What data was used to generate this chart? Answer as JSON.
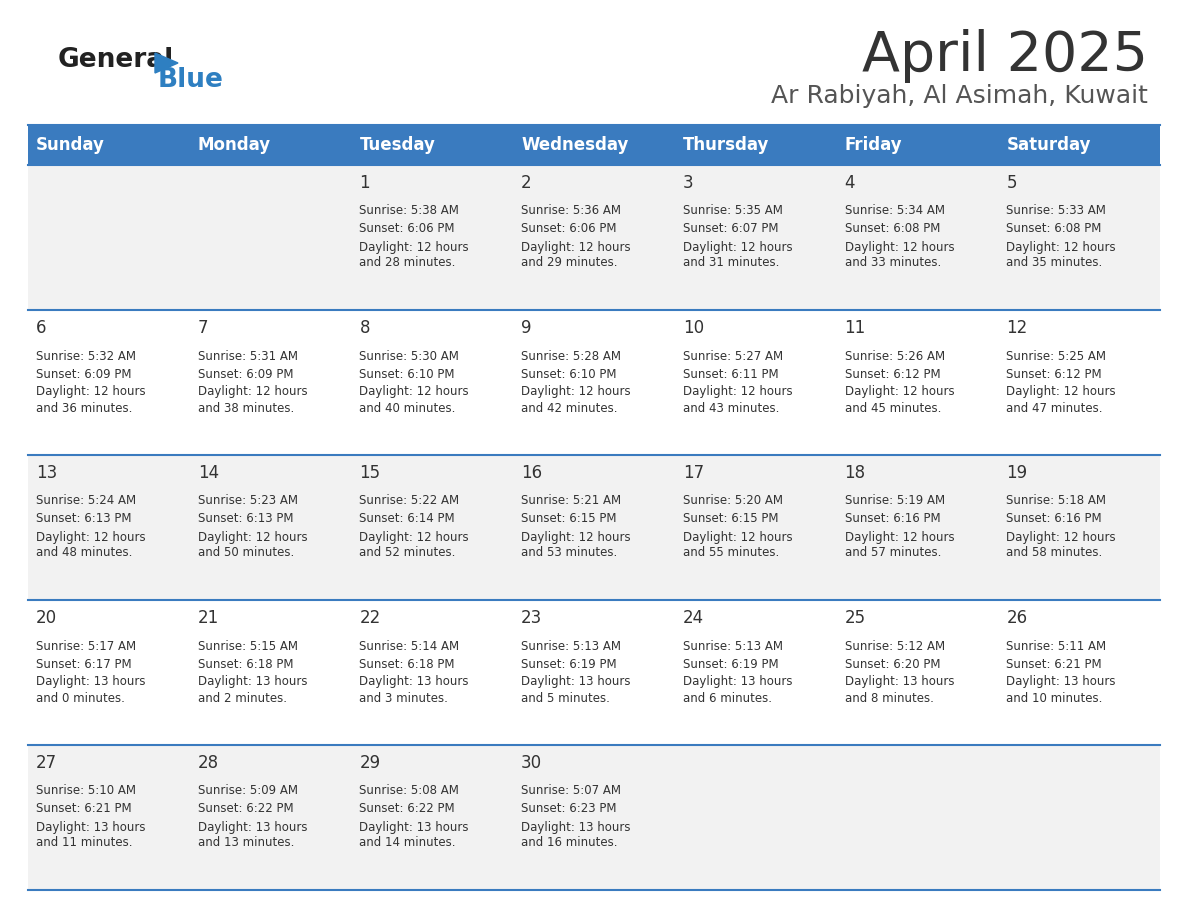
{
  "title": "April 2025",
  "subtitle": "Ar Rabiyah, Al Asimah, Kuwait",
  "header_bg_color": "#3a7bbf",
  "header_text_color": "#ffffff",
  "row_bg_even": "#f2f2f2",
  "row_bg_odd": "#ffffff",
  "day_names": [
    "Sunday",
    "Monday",
    "Tuesday",
    "Wednesday",
    "Thursday",
    "Friday",
    "Saturday"
  ],
  "title_color": "#333333",
  "subtitle_color": "#555555",
  "date_text_color": "#333333",
  "info_text_color": "#333333",
  "divider_color": "#3a7bbf",
  "weeks": [
    [
      {
        "day": "",
        "sunrise": "",
        "sunset": "",
        "daylight": ""
      },
      {
        "day": "",
        "sunrise": "",
        "sunset": "",
        "daylight": ""
      },
      {
        "day": "1",
        "sunrise": "5:38 AM",
        "sunset": "6:06 PM",
        "daylight": "12 hours and 28 minutes."
      },
      {
        "day": "2",
        "sunrise": "5:36 AM",
        "sunset": "6:06 PM",
        "daylight": "12 hours and 29 minutes."
      },
      {
        "day": "3",
        "sunrise": "5:35 AM",
        "sunset": "6:07 PM",
        "daylight": "12 hours and 31 minutes."
      },
      {
        "day": "4",
        "sunrise": "5:34 AM",
        "sunset": "6:08 PM",
        "daylight": "12 hours and 33 minutes."
      },
      {
        "day": "5",
        "sunrise": "5:33 AM",
        "sunset": "6:08 PM",
        "daylight": "12 hours and 35 minutes."
      }
    ],
    [
      {
        "day": "6",
        "sunrise": "5:32 AM",
        "sunset": "6:09 PM",
        "daylight": "12 hours and 36 minutes."
      },
      {
        "day": "7",
        "sunrise": "5:31 AM",
        "sunset": "6:09 PM",
        "daylight": "12 hours and 38 minutes."
      },
      {
        "day": "8",
        "sunrise": "5:30 AM",
        "sunset": "6:10 PM",
        "daylight": "12 hours and 40 minutes."
      },
      {
        "day": "9",
        "sunrise": "5:28 AM",
        "sunset": "6:10 PM",
        "daylight": "12 hours and 42 minutes."
      },
      {
        "day": "10",
        "sunrise": "5:27 AM",
        "sunset": "6:11 PM",
        "daylight": "12 hours and 43 minutes."
      },
      {
        "day": "11",
        "sunrise": "5:26 AM",
        "sunset": "6:12 PM",
        "daylight": "12 hours and 45 minutes."
      },
      {
        "day": "12",
        "sunrise": "5:25 AM",
        "sunset": "6:12 PM",
        "daylight": "12 hours and 47 minutes."
      }
    ],
    [
      {
        "day": "13",
        "sunrise": "5:24 AM",
        "sunset": "6:13 PM",
        "daylight": "12 hours and 48 minutes."
      },
      {
        "day": "14",
        "sunrise": "5:23 AM",
        "sunset": "6:13 PM",
        "daylight": "12 hours and 50 minutes."
      },
      {
        "day": "15",
        "sunrise": "5:22 AM",
        "sunset": "6:14 PM",
        "daylight": "12 hours and 52 minutes."
      },
      {
        "day": "16",
        "sunrise": "5:21 AM",
        "sunset": "6:15 PM",
        "daylight": "12 hours and 53 minutes."
      },
      {
        "day": "17",
        "sunrise": "5:20 AM",
        "sunset": "6:15 PM",
        "daylight": "12 hours and 55 minutes."
      },
      {
        "day": "18",
        "sunrise": "5:19 AM",
        "sunset": "6:16 PM",
        "daylight": "12 hours and 57 minutes."
      },
      {
        "day": "19",
        "sunrise": "5:18 AM",
        "sunset": "6:16 PM",
        "daylight": "12 hours and 58 minutes."
      }
    ],
    [
      {
        "day": "20",
        "sunrise": "5:17 AM",
        "sunset": "6:17 PM",
        "daylight": "13 hours and 0 minutes."
      },
      {
        "day": "21",
        "sunrise": "5:15 AM",
        "sunset": "6:18 PM",
        "daylight": "13 hours and 2 minutes."
      },
      {
        "day": "22",
        "sunrise": "5:14 AM",
        "sunset": "6:18 PM",
        "daylight": "13 hours and 3 minutes."
      },
      {
        "day": "23",
        "sunrise": "5:13 AM",
        "sunset": "6:19 PM",
        "daylight": "13 hours and 5 minutes."
      },
      {
        "day": "24",
        "sunrise": "5:13 AM",
        "sunset": "6:19 PM",
        "daylight": "13 hours and 6 minutes."
      },
      {
        "day": "25",
        "sunrise": "5:12 AM",
        "sunset": "6:20 PM",
        "daylight": "13 hours and 8 minutes."
      },
      {
        "day": "26",
        "sunrise": "5:11 AM",
        "sunset": "6:21 PM",
        "daylight": "13 hours and 10 minutes."
      }
    ],
    [
      {
        "day": "27",
        "sunrise": "5:10 AM",
        "sunset": "6:21 PM",
        "daylight": "13 hours and 11 minutes."
      },
      {
        "day": "28",
        "sunrise": "5:09 AM",
        "sunset": "6:22 PM",
        "daylight": "13 hours and 13 minutes."
      },
      {
        "day": "29",
        "sunrise": "5:08 AM",
        "sunset": "6:22 PM",
        "daylight": "13 hours and 14 minutes."
      },
      {
        "day": "30",
        "sunrise": "5:07 AM",
        "sunset": "6:23 PM",
        "daylight": "13 hours and 16 minutes."
      },
      {
        "day": "",
        "sunrise": "",
        "sunset": "",
        "daylight": ""
      },
      {
        "day": "",
        "sunrise": "",
        "sunset": "",
        "daylight": ""
      },
      {
        "day": "",
        "sunrise": "",
        "sunset": "",
        "daylight": ""
      }
    ]
  ]
}
